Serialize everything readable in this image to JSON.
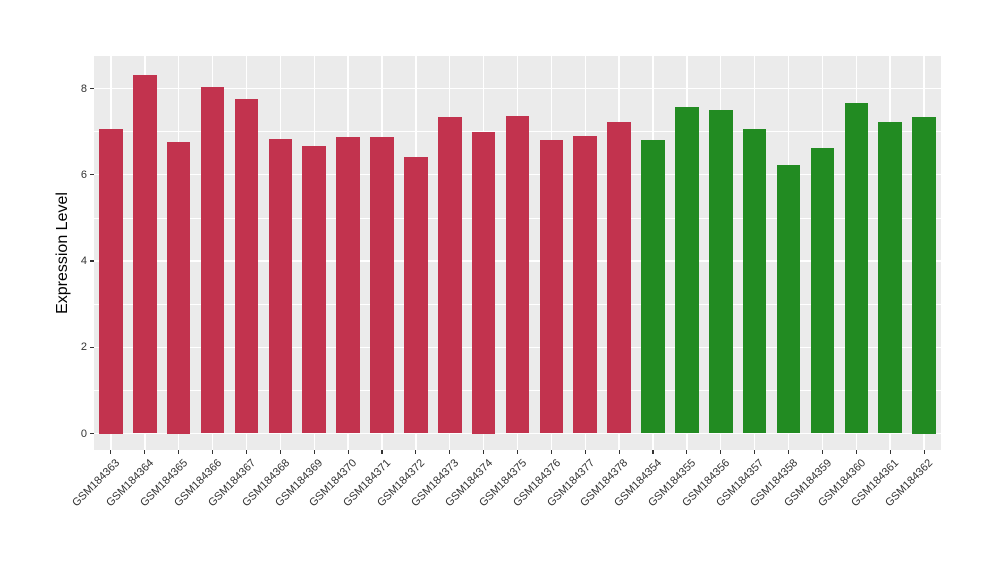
{
  "chart_data": {
    "type": "bar",
    "title": "",
    "xlabel": "",
    "ylabel": "Expression Level",
    "categories": [
      "GSM184363",
      "GSM184364",
      "GSM184365",
      "GSM184366",
      "GSM184367",
      "GSM184368",
      "GSM184369",
      "GSM184370",
      "GSM184371",
      "GSM184372",
      "GSM184373",
      "GSM184374",
      "GSM184375",
      "GSM184376",
      "GSM184377",
      "GSM184378",
      "GSM184354",
      "GSM184355",
      "GSM184356",
      "GSM184357",
      "GSM184358",
      "GSM184359",
      "GSM184360",
      "GSM184361",
      "GSM184362"
    ],
    "values": [
      7.05,
      8.32,
      6.75,
      8.04,
      7.76,
      6.82,
      6.67,
      6.87,
      6.88,
      6.42,
      7.33,
      7.0,
      7.36,
      6.81,
      6.91,
      7.22,
      6.81,
      7.56,
      7.49,
      7.06,
      6.22,
      6.62,
      7.67,
      7.23,
      7.35
    ],
    "groups": [
      "red",
      "red",
      "red",
      "red",
      "red",
      "red",
      "red",
      "red",
      "red",
      "red",
      "red",
      "red",
      "red",
      "red",
      "red",
      "red",
      "green",
      "green",
      "green",
      "green",
      "green",
      "green",
      "green",
      "green",
      "green"
    ],
    "group_colors": {
      "red": "#C2334E",
      "green": "#228B22"
    },
    "ytick_labels": [
      "0",
      "2",
      "4",
      "6",
      "8"
    ],
    "ytick_values": [
      0,
      2,
      4,
      6,
      8
    ],
    "ylim": [
      -0.42,
      8.76
    ],
    "grid": true,
    "legend": "none",
    "panel_background": "#EBEBEB",
    "grid_color": "#FFFFFF",
    "axis_text_color": "#333333"
  }
}
